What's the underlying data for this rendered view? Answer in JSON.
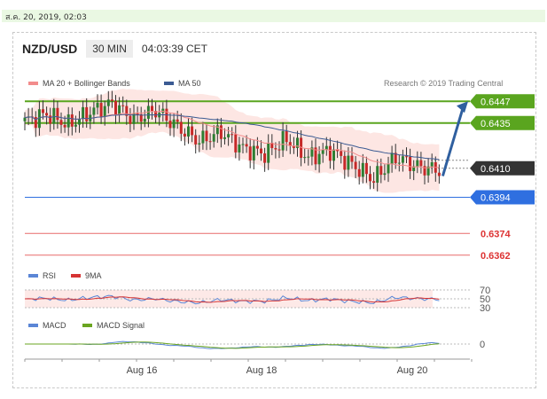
{
  "datetime": "ส.ค. 20, 2019, 02:03",
  "header": {
    "symbol": "NZD/USD",
    "timeframe": "30 MIN",
    "time": "04:03:39 CET"
  },
  "legend": {
    "ma20": "MA 20 + Bollinger Bands",
    "ma50": "MA 50",
    "credit": "Research © 2019 Trading Central"
  },
  "colors": {
    "resistance": "#5aa51f",
    "support": "#2f6fe0",
    "red_level": "#e76a6a",
    "current": "#333333",
    "ma20": "#f28c8c",
    "ma50": "#3b5b93",
    "band": "#fde3e0",
    "up": "#2e7d32",
    "down": "#c62828",
    "arrow": "#2f5f9f",
    "rsi": "#5b86d6",
    "rsi_ma": "#d63333",
    "macd": "#5b86d6",
    "macd_signal": "#6aa520"
  },
  "chart_data": {
    "type": "candlestick",
    "x_tick_labels": [
      "Aug 16",
      "Aug 18",
      "Aug 20"
    ],
    "price_levels": [
      {
        "value": 0.6447,
        "label": "0.6447",
        "kind": "resistance"
      },
      {
        "value": 0.6435,
        "label": "0.6435",
        "kind": "resistance"
      },
      {
        "value": 0.641,
        "label": "0.6410",
        "kind": "current"
      },
      {
        "value": 0.6394,
        "label": "0.6394",
        "kind": "support"
      },
      {
        "value": 0.6374,
        "label": "0.6374",
        "kind": "minor"
      },
      {
        "value": 0.6362,
        "label": "0.6362",
        "kind": "minor"
      }
    ],
    "price_ylim": [
      0.6356,
      0.6454
    ],
    "forecast_target": 0.6447,
    "close_anchors": [
      [
        0,
        0.6436
      ],
      [
        6,
        0.644
      ],
      [
        12,
        0.6434
      ],
      [
        18,
        0.6441
      ],
      [
        24,
        0.6446
      ],
      [
        30,
        0.6437
      ],
      [
        36,
        0.6442
      ],
      [
        42,
        0.6433
      ],
      [
        48,
        0.6425
      ],
      [
        54,
        0.643
      ],
      [
        60,
        0.6421
      ],
      [
        66,
        0.6418
      ],
      [
        72,
        0.6426
      ],
      [
        78,
        0.6416
      ],
      [
        84,
        0.642
      ],
      [
        90,
        0.6412
      ],
      [
        96,
        0.6404
      ],
      [
        102,
        0.6416
      ],
      [
        108,
        0.6411
      ],
      [
        114,
        0.6409
      ]
    ],
    "rsi": {
      "name": "RSI",
      "ma_name": "9MA",
      "levels": [
        70,
        50,
        30
      ],
      "ylim": [
        20,
        80
      ]
    },
    "macd": {
      "name": "MACD",
      "signal_name": "MACD Signal",
      "levels": [
        0
      ]
    }
  }
}
